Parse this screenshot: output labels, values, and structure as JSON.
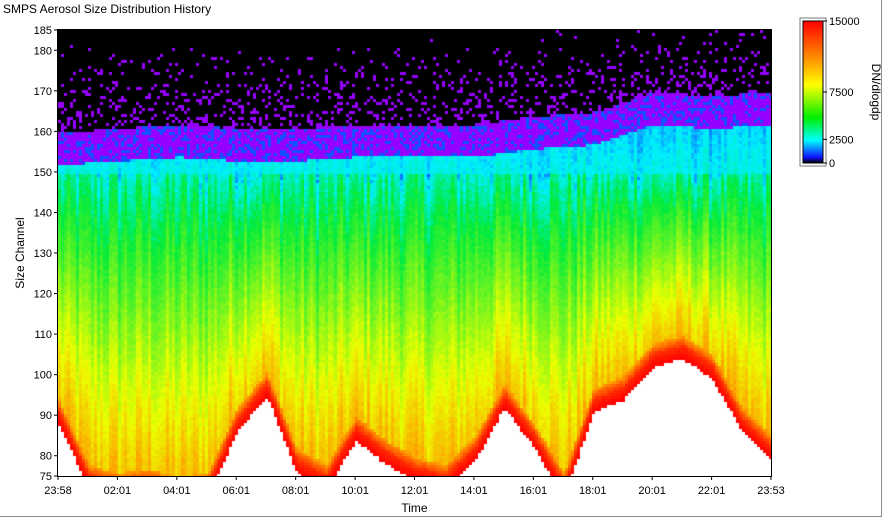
{
  "window": {
    "title": "SMPS Aerosol Size Distribution History"
  },
  "chart_data": {
    "type": "heatmap",
    "title": "SMPS Aerosol Size Distribution History",
    "xlabel": "Time",
    "ylabel": "Size Channel",
    "x_tick_labels": [
      "23:58",
      "02:01",
      "04:01",
      "06:01",
      "08:01",
      "10:01",
      "12:01",
      "14:01",
      "16:01",
      "18:01",
      "20:01",
      "22:01",
      "23:53"
    ],
    "y_ticks": [
      75,
      80,
      90,
      100,
      110,
      120,
      130,
      140,
      150,
      160,
      170,
      180,
      185
    ],
    "ylim": [
      75,
      185
    ],
    "colorbar": {
      "label": "DN/dlogdp",
      "ticks": [
        0,
        2500,
        7500,
        15000
      ],
      "tick_labels": [
        "0",
        "2500",
        "7500",
        "15000"
      ],
      "range": [
        0,
        15000
      ],
      "colors": [
        "#000000",
        "#1010ff",
        "#00ffff",
        "#00ee00",
        "#ffff00",
        "#ff8800",
        "#ff0000",
        "#ffffff"
      ]
    },
    "grid": false,
    "upper_boundary_channel": {
      "x": [
        "23:58",
        "02:01",
        "04:01",
        "06:01",
        "08:01",
        "10:01",
        "12:01",
        "14:01",
        "16:01",
        "18:01",
        "20:01",
        "22:01",
        "23:53"
      ],
      "values": [
        158,
        159,
        160,
        159,
        159,
        160,
        160,
        160,
        162,
        163,
        168,
        167,
        168
      ]
    },
    "saturation_edge_channel": {
      "x": [
        "23:58",
        "01:00",
        "02:01",
        "03:00",
        "04:01",
        "05:00",
        "06:01",
        "07:00",
        "08:01",
        "09:00",
        "10:01",
        "11:00",
        "12:01",
        "13:00",
        "14:01",
        "15:00",
        "16:01",
        "17:00",
        "18:01",
        "19:00",
        "20:01",
        "21:00",
        "22:01",
        "23:00",
        "23:53"
      ],
      "values": [
        94,
        78,
        76,
        77,
        75,
        76,
        92,
        101,
        82,
        78,
        90,
        84,
        80,
        78,
        85,
        98,
        88,
        76,
        97,
        100,
        108,
        110,
        105,
        92,
        85
      ]
    }
  }
}
